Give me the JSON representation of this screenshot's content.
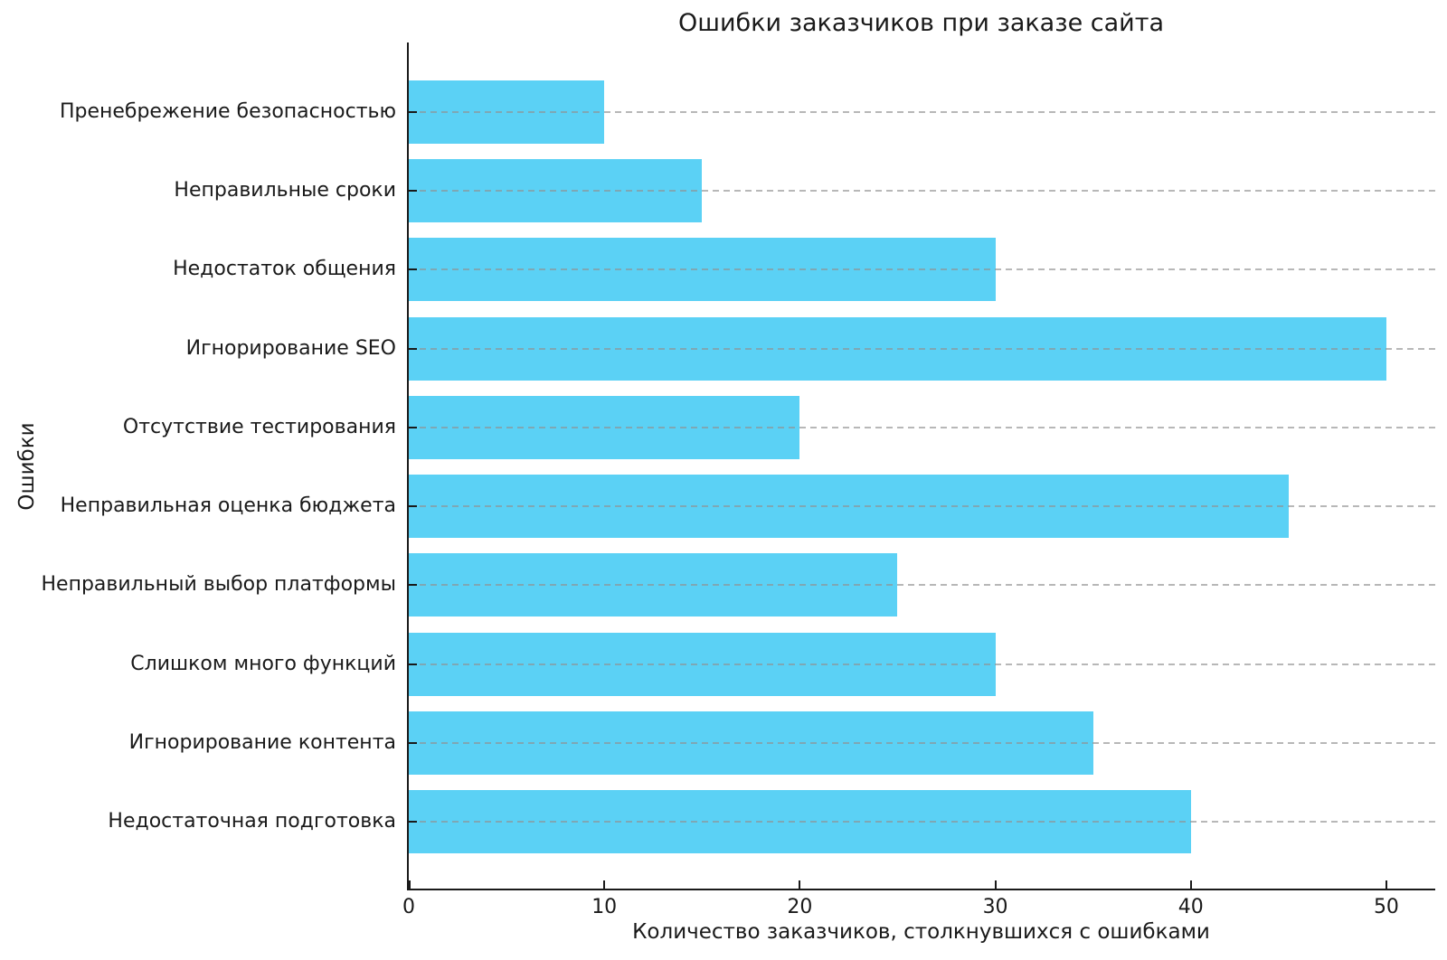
{
  "chart_data": {
    "type": "bar",
    "orientation": "horizontal",
    "title": "Ошибки заказчиков при заказе сайта",
    "xlabel": "Количество заказчиков, столкнувшихся с ошибками",
    "ylabel": "Ошибки",
    "categories": [
      "Пренебрежение безопасностью",
      "Неправильные сроки",
      "Недостаток общения",
      "Игнорирование SEO",
      "Отсутствие тестирования",
      "Неправильная оценка бюджета",
      "Неправильный выбор платформы",
      "Слишком много функций",
      "Игнорирование контента",
      "Недостаточная подготовка"
    ],
    "values": [
      10,
      15,
      30,
      50,
      20,
      45,
      25,
      30,
      35,
      40
    ],
    "x_ticks": [
      0,
      10,
      20,
      30,
      40,
      50
    ],
    "xlim": [
      0,
      52.5
    ],
    "bar_color": "#5bd1f5",
    "grid": "horizontal dashed lines at each category, drawn over bars",
    "gridline_color": "#919191",
    "spine_color": "#1a1a1a",
    "legend": "none"
  }
}
